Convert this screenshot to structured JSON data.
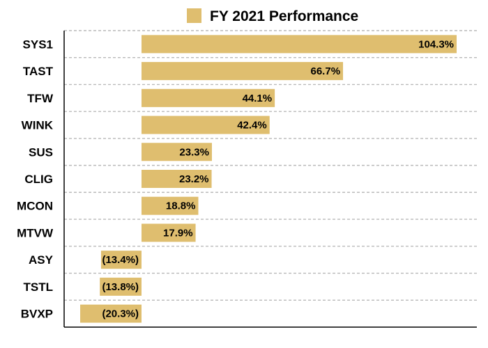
{
  "chart_data": {
    "type": "bar",
    "orientation": "horizontal",
    "legend": "FY 2021 Performance",
    "legend_position": "top-center",
    "color": "#DFBE6F",
    "grid": true,
    "xlim": [
      -20.3,
      104.3
    ],
    "categories": [
      "SYS1",
      "TAST",
      "TFW",
      "WINK",
      "SUS",
      "CLIG",
      "MCON",
      "MTVW",
      "ASY",
      "TSTL",
      "BVXP"
    ],
    "values": [
      104.3,
      66.7,
      44.1,
      42.4,
      23.3,
      23.2,
      18.8,
      17.9,
      -13.4,
      -13.8,
      -20.3
    ],
    "data_labels": [
      "104.3%",
      "66.7%",
      "44.1%",
      "42.4%",
      "23.3%",
      "23.2%",
      "18.8%",
      "17.9%",
      "(13.4%)",
      "(13.8%)",
      "(20.3%)"
    ]
  }
}
